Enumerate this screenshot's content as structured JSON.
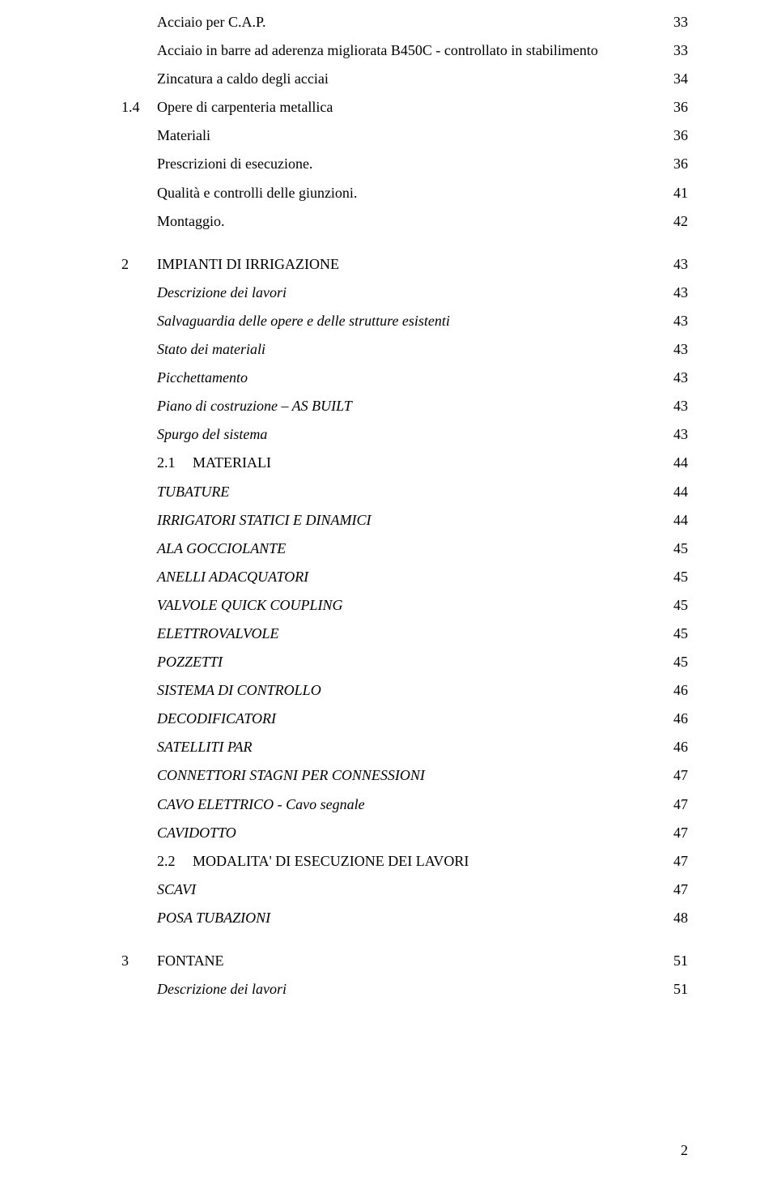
{
  "lines": [
    {
      "indent": "indent-2",
      "style": "",
      "label": "Acciaio per C.A.P.",
      "page": "33"
    },
    {
      "indent": "indent-2",
      "style": "",
      "label": "Acciaio in barre ad aderenza migliorata B450C - controllato in stabilimento",
      "page": "33"
    },
    {
      "indent": "indent-2",
      "style": "",
      "label": "Zincatura a caldo degli acciai",
      "page": "34"
    },
    {
      "indent": "",
      "style": "",
      "prefix": "1.4",
      "label": "Opere di carpenteria metallica",
      "page": "36"
    },
    {
      "indent": "indent-2",
      "style": "",
      "label": "Materiali",
      "page": "36"
    },
    {
      "indent": "indent-2",
      "style": "",
      "label": "Prescrizioni di esecuzione.",
      "page": "36"
    },
    {
      "indent": "indent-2",
      "style": "",
      "label": "Qualità e controlli delle giunzioni.",
      "page": "41"
    },
    {
      "indent": "indent-2",
      "style": "",
      "label": "Montaggio.",
      "page": "42"
    }
  ],
  "section2": {
    "heading": {
      "prefix": "2",
      "label": "IMPIANTI DI IRRIGAZIONE",
      "page": "43"
    },
    "items": [
      {
        "indent": "indent-1",
        "style": "italic",
        "label": "Descrizione dei lavori",
        "page": "43"
      },
      {
        "indent": "indent-1",
        "style": "italic",
        "label": "Salvaguardia delle opere e delle strutture esistenti",
        "page": "43"
      },
      {
        "indent": "indent-1",
        "style": "italic",
        "label": "Stato dei materiali",
        "page": "43"
      },
      {
        "indent": "indent-1",
        "style": "italic",
        "label": "Picchettamento",
        "page": "43"
      },
      {
        "indent": "indent-1",
        "style": "italic",
        "label": "Piano di costruzione – AS BUILT",
        "page": "43"
      },
      {
        "indent": "indent-1",
        "style": "italic",
        "label": "Spurgo del sistema",
        "page": "43"
      },
      {
        "indent": "indent-1",
        "style": "",
        "prefix": "2.1",
        "label": "MATERIALI",
        "page": "44"
      },
      {
        "indent": "indent-1",
        "style": "italic",
        "label": "TUBATURE",
        "page": "44"
      },
      {
        "indent": "indent-1",
        "style": "italic",
        "label": "IRRIGATORI STATICI E DINAMICI",
        "page": "44"
      },
      {
        "indent": "indent-1",
        "style": "italic",
        "label": "ALA GOCCIOLANTE",
        "page": "45"
      },
      {
        "indent": "indent-1",
        "style": "italic",
        "label": "ANELLI ADACQUATORI",
        "page": "45"
      },
      {
        "indent": "indent-1",
        "style": "italic",
        "label": "VALVOLE QUICK COUPLING",
        "page": "45"
      },
      {
        "indent": "indent-1",
        "style": "italic",
        "label": "ELETTROVALVOLE",
        "page": "45"
      },
      {
        "indent": "indent-1",
        "style": "italic",
        "label": "POZZETTI",
        "page": "45"
      },
      {
        "indent": "indent-1",
        "style": "italic",
        "label": "SISTEMA DI CONTROLLO",
        "page": "46"
      },
      {
        "indent": "indent-1",
        "style": "italic",
        "label": "DECODIFICATORI",
        "page": "46"
      },
      {
        "indent": "indent-1",
        "style": "italic",
        "label": "SATELLITI PAR",
        "page": "46"
      },
      {
        "indent": "indent-1",
        "style": "italic",
        "label": "CONNETTORI STAGNI PER CONNESSIONI",
        "page": "47"
      },
      {
        "indent": "indent-1",
        "style": "italic",
        "label": "CAVO ELETTRICO - Cavo segnale",
        "page": "47"
      },
      {
        "indent": "indent-1",
        "style": "italic",
        "label": "CAVIDOTTO",
        "page": "47"
      },
      {
        "indent": "indent-1",
        "style": "",
        "prefix": "2.2",
        "label": "MODALITA' DI ESECUZIONE DEI LAVORI",
        "page": "47"
      },
      {
        "indent": "indent-1",
        "style": "italic",
        "label": "SCAVI",
        "page": "47"
      },
      {
        "indent": "indent-1",
        "style": "italic",
        "label": "POSA TUBAZIONI",
        "page": "48"
      }
    ]
  },
  "section3": {
    "heading": {
      "prefix": "3",
      "label": "FONTANE",
      "page": "51"
    },
    "items": [
      {
        "indent": "indent-1",
        "style": "italic",
        "label": "Descrizione dei lavori",
        "page": "51"
      }
    ]
  },
  "pageNumber": "2"
}
